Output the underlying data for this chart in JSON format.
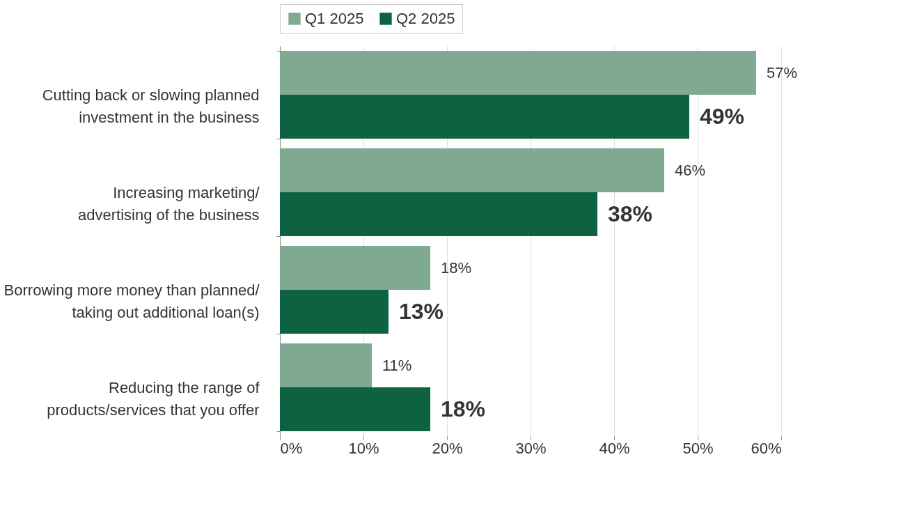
{
  "chart_data": {
    "type": "bar",
    "orientation": "horizontal",
    "categories": [
      "Cutting back or slowing planned\ninvestment in the business",
      "Increasing marketing/\nadvertising of the business",
      "Borrowing more money than planned/\ntaking out additional loan(s)",
      "Reducing the range of\nproducts/services that you offer"
    ],
    "series": [
      {
        "name": "Q1 2025",
        "color": "#7fa991",
        "values": [
          57,
          46,
          18,
          11
        ],
        "value_labels": [
          "57%",
          "46%",
          "18%",
          "11%"
        ]
      },
      {
        "name": "Q2 2025",
        "color": "#0d6242",
        "values": [
          49,
          38,
          13,
          18
        ],
        "value_labels": [
          "49%",
          "38%",
          "13%",
          "18%"
        ]
      }
    ],
    "xlim": [
      0,
      60
    ],
    "xticks": [
      {
        "value": 0,
        "label": "0%"
      },
      {
        "value": 10,
        "label": "10%"
      },
      {
        "value": 20,
        "label": "20%"
      },
      {
        "value": 30,
        "label": "30%"
      },
      {
        "value": 40,
        "label": "40%"
      },
      {
        "value": 50,
        "label": "50%"
      },
      {
        "value": 60,
        "label": "60%"
      }
    ],
    "grid": "x",
    "legend": "top"
  }
}
